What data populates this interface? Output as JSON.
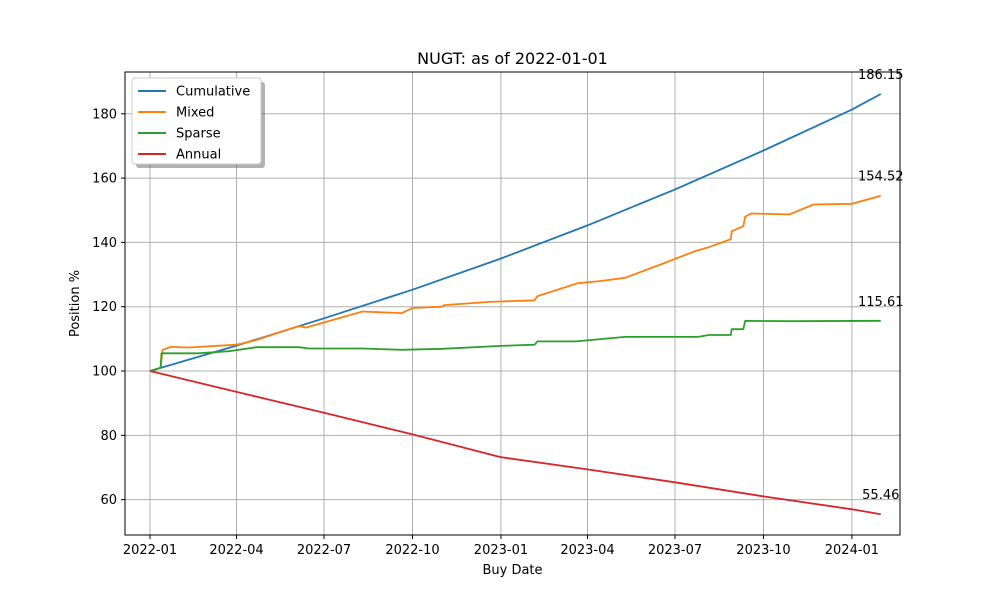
{
  "chart_data": {
    "type": "line",
    "title": "NUGT: as of 2022-01-01",
    "xlabel": "Buy Date",
    "ylabel": "Position %",
    "ylim": [
      49,
      193
    ],
    "xlim": [
      "2021-12-06",
      "2024-02-20"
    ],
    "xticks": [
      "2022-01",
      "2022-04",
      "2022-07",
      "2022-10",
      "2023-01",
      "2023-04",
      "2023-07",
      "2023-10",
      "2024-01"
    ],
    "yticks": [
      60,
      80,
      100,
      120,
      140,
      160,
      180
    ],
    "grid": true,
    "legend_position": "top-left",
    "series": [
      {
        "name": "Cumulative",
        "color": "#1f77b4",
        "points": [
          [
            "2022-01-01",
            100
          ],
          [
            "2022-04-01",
            107.9
          ],
          [
            "2022-07-01",
            116.4
          ],
          [
            "2022-10-01",
            125.3
          ],
          [
            "2023-01-01",
            135.0
          ],
          [
            "2023-04-01",
            145.3
          ],
          [
            "2023-07-01",
            156.5
          ],
          [
            "2023-10-01",
            168.6
          ],
          [
            "2024-01-01",
            181.3
          ],
          [
            "2024-01-31",
            186.15
          ]
        ],
        "end_label": "186.15"
      },
      {
        "name": "Mixed",
        "color": "#ff7f0e",
        "points": [
          [
            "2022-01-01",
            100
          ],
          [
            "2022-01-12",
            101
          ],
          [
            "2022-01-14",
            106.5
          ],
          [
            "2022-01-22",
            107.5
          ],
          [
            "2022-02-10",
            107.3
          ],
          [
            "2022-04-01",
            108.2
          ],
          [
            "2022-04-20",
            109.5
          ],
          [
            "2022-06-05",
            114.0
          ],
          [
            "2022-06-12",
            113.5
          ],
          [
            "2022-08-10",
            118.5
          ],
          [
            "2022-09-20",
            118.0
          ],
          [
            "2022-10-01",
            119.6
          ],
          [
            "2022-11-01",
            120.0
          ],
          [
            "2022-11-03",
            120.5
          ],
          [
            "2022-12-20",
            121.5
          ],
          [
            "2023-02-05",
            122.0
          ],
          [
            "2023-02-08",
            123.3
          ],
          [
            "2023-03-22",
            127.3
          ],
          [
            "2023-04-15",
            128.0
          ],
          [
            "2023-05-10",
            129.0
          ],
          [
            "2023-06-15",
            133.0
          ],
          [
            "2023-07-22",
            137.3
          ],
          [
            "2023-08-05",
            138.5
          ],
          [
            "2023-08-28",
            141.0
          ],
          [
            "2023-08-29",
            143.5
          ],
          [
            "2023-09-10",
            145.0
          ],
          [
            "2023-09-12",
            148.0
          ],
          [
            "2023-09-18",
            149.0
          ],
          [
            "2023-10-28",
            148.7
          ],
          [
            "2023-11-22",
            151.8
          ],
          [
            "2024-01-01",
            152.0
          ],
          [
            "2024-01-31",
            154.52
          ]
        ],
        "end_label": "154.52"
      },
      {
        "name": "Sparse",
        "color": "#2ca02c",
        "points": [
          [
            "2022-01-01",
            100
          ],
          [
            "2022-01-10",
            100.8
          ],
          [
            "2022-01-12",
            101.0
          ],
          [
            "2022-01-13",
            105.5
          ],
          [
            "2022-02-20",
            105.5
          ],
          [
            "2022-03-25",
            106.2
          ],
          [
            "2022-04-01",
            106.5
          ],
          [
            "2022-04-22",
            107.4
          ],
          [
            "2022-06-05",
            107.4
          ],
          [
            "2022-06-15",
            107.0
          ],
          [
            "2022-08-10",
            107.0
          ],
          [
            "2022-09-20",
            106.6
          ],
          [
            "2022-11-01",
            106.9
          ],
          [
            "2023-01-01",
            107.8
          ],
          [
            "2023-02-05",
            108.2
          ],
          [
            "2023-02-08",
            109.2
          ],
          [
            "2023-03-20",
            109.2
          ],
          [
            "2023-05-10",
            110.6
          ],
          [
            "2023-07-25",
            110.6
          ],
          [
            "2023-08-05",
            111.2
          ],
          [
            "2023-08-28",
            111.2
          ],
          [
            "2023-08-29",
            113.0
          ],
          [
            "2023-09-10",
            113.0
          ],
          [
            "2023-09-12",
            115.6
          ],
          [
            "2023-11-01",
            115.5
          ],
          [
            "2024-01-31",
            115.61
          ]
        ],
        "end_label": "115.61"
      },
      {
        "name": "Annual",
        "color": "#d62728",
        "points": [
          [
            "2022-01-01",
            100
          ],
          [
            "2022-04-01",
            93.5
          ],
          [
            "2022-07-01",
            87.0
          ],
          [
            "2022-10-01",
            80.3
          ],
          [
            "2023-01-01",
            73.2
          ],
          [
            "2023-04-01",
            69.4
          ],
          [
            "2023-07-01",
            65.4
          ],
          [
            "2023-10-01",
            61.0
          ],
          [
            "2024-01-01",
            57.0
          ],
          [
            "2024-01-31",
            55.46
          ]
        ],
        "end_label": "55.46"
      }
    ]
  }
}
